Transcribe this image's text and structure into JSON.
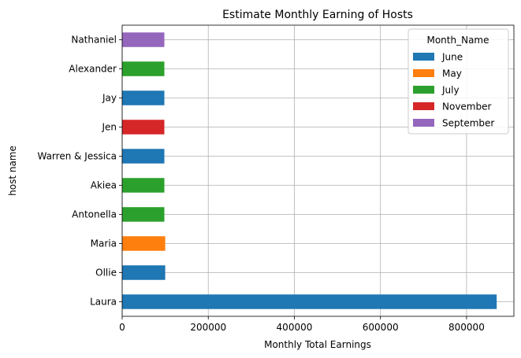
{
  "chart_data": {
    "type": "bar",
    "orientation": "horizontal",
    "title": "Estimate Monthly Earning of Hosts",
    "xlabel": "Monthly Total Earnings",
    "ylabel": "host name",
    "xlim": [
      0,
      910000
    ],
    "xticks": [
      0,
      200000,
      400000,
      600000,
      800000
    ],
    "xtick_labels": [
      "0",
      "200000",
      "400000",
      "600000",
      "800000"
    ],
    "grid": true,
    "legend": {
      "title": "Month_Name",
      "placement": "top-right",
      "entries": [
        {
          "name": "June",
          "color": "#1f77b4"
        },
        {
          "name": "May",
          "color": "#ff7f0e"
        },
        {
          "name": "July",
          "color": "#2ca02c"
        },
        {
          "name": "November",
          "color": "#d62728"
        },
        {
          "name": "September",
          "color": "#9467bd"
        }
      ]
    },
    "bars": [
      {
        "host": "Laura",
        "value": 870000,
        "month": "June"
      },
      {
        "host": "Ollie",
        "value": 100000,
        "month": "June"
      },
      {
        "host": "Maria",
        "value": 100000,
        "month": "May"
      },
      {
        "host": "Antonella",
        "value": 98000,
        "month": "July"
      },
      {
        "host": "Akiea",
        "value": 98000,
        "month": "July"
      },
      {
        "host": "Warren & Jessica",
        "value": 98000,
        "month": "June"
      },
      {
        "host": "Jen",
        "value": 98000,
        "month": "November"
      },
      {
        "host": "Jay",
        "value": 98000,
        "month": "June"
      },
      {
        "host": "Alexander",
        "value": 98000,
        "month": "July"
      },
      {
        "host": "Nathaniel",
        "value": 98000,
        "month": "September"
      }
    ]
  }
}
